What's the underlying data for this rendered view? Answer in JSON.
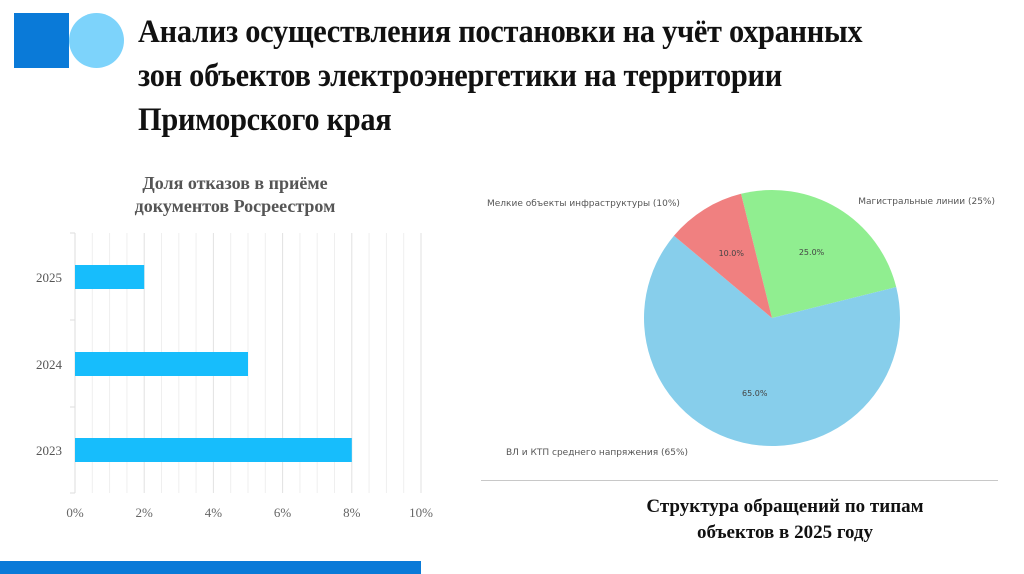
{
  "slide": {
    "title": "Анализ осуществления постановки на учёт охранных зон объектов электроэнергетики на территории Приморского края",
    "colors": {
      "accent_dark": "#0a7ad8",
      "accent_light": "#7dd3fb",
      "bar": "#17bdfc"
    }
  },
  "bar_chart": {
    "title": "Доля отказов в приёме документов Росреестром"
  },
  "pie_chart": {
    "caption": "Структура обращений по типам объектов в 2025 году"
  },
  "chart_data": [
    {
      "type": "bar",
      "orientation": "horizontal",
      "title": "Доля отказов в приёме документов Росреестром",
      "categories": [
        "2025",
        "2024",
        "2023"
      ],
      "values": [
        2,
        5,
        8
      ],
      "unit": "%",
      "xlabel": "",
      "ylabel": "",
      "xlim": [
        0,
        10
      ],
      "xticks": [
        "0%",
        "2%",
        "4%",
        "6%",
        "8%",
        "10%"
      ],
      "grid": true,
      "color": "#17bdfc"
    },
    {
      "type": "pie",
      "title": "Структура обращений по типам объектов в 2025 году",
      "categories": [
        "Магистральные линии (25%)",
        "ВЛ и КТП среднего напряжения (65%)",
        "Мелкие объекты инфраструктуры (10%)"
      ],
      "values": [
        25,
        65,
        10
      ],
      "value_labels": [
        "25.0%",
        "65.0%",
        "10.0%"
      ],
      "colors": [
        "#90ee90",
        "#87ceeb",
        "#f08080"
      ]
    }
  ]
}
